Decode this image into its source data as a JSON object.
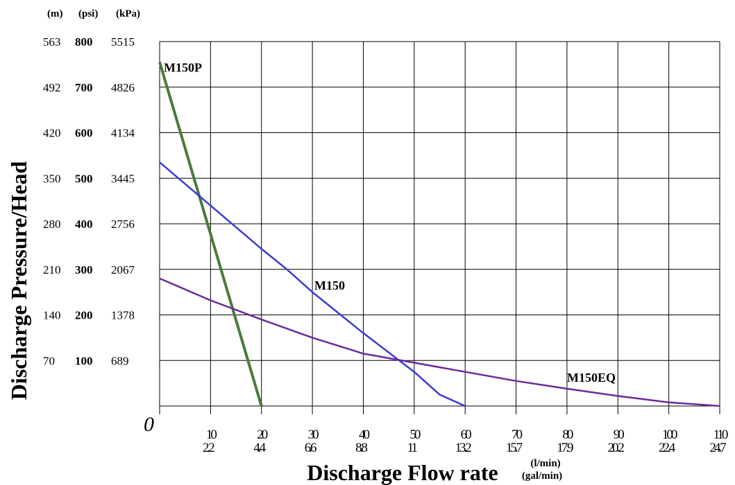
{
  "chart_data": {
    "type": "line",
    "xlabel": "Discharge Flow rate",
    "ylabel": "Discharge Pressure/Head",
    "x_units": [
      "(l/min)",
      "(gal/min)"
    ],
    "y_units": [
      "(m)",
      "(psi)",
      "(kPa)"
    ],
    "origin_label": "0",
    "xlim": [
      0,
      110
    ],
    "ylim": [
      0,
      800
    ],
    "grid": true,
    "x_ticks": [
      {
        "lpm": 10,
        "lpm_label": "10",
        "gpm_label": "2.2"
      },
      {
        "lpm": 20,
        "lpm_label": "20",
        "gpm_label": "4.4"
      },
      {
        "lpm": 30,
        "lpm_label": "30",
        "gpm_label": "6.6"
      },
      {
        "lpm": 40,
        "lpm_label": "40",
        "gpm_label": "8.8"
      },
      {
        "lpm": 50,
        "lpm_label": "50",
        "gpm_label": "11"
      },
      {
        "lpm": 60,
        "lpm_label": "60",
        "gpm_label": "13.2"
      },
      {
        "lpm": 70,
        "lpm_label": "70",
        "gpm_label": "15.7"
      },
      {
        "lpm": 80,
        "lpm_label": "80",
        "gpm_label": "17.9"
      },
      {
        "lpm": 90,
        "lpm_label": "90",
        "gpm_label": "20.2"
      },
      {
        "lpm": 100,
        "lpm_label": "100",
        "gpm_label": "22.4"
      },
      {
        "lpm": 110,
        "lpm_label": "110",
        "gpm_label": "24.7"
      }
    ],
    "y_ticks": [
      {
        "psi": 100,
        "m": "70",
        "psi_label": "100",
        "kpa": "689"
      },
      {
        "psi": 200,
        "m": "140",
        "psi_label": "200",
        "kpa": "1378"
      },
      {
        "psi": 300,
        "m": "210",
        "psi_label": "300",
        "kpa": "2067"
      },
      {
        "psi": 400,
        "m": "280",
        "psi_label": "400",
        "kpa": "2756"
      },
      {
        "psi": 500,
        "m": "350",
        "psi_label": "500",
        "kpa": "3445"
      },
      {
        "psi": 600,
        "m": "420",
        "psi_label": "600",
        "kpa": "4134"
      },
      {
        "psi": 700,
        "m": "492",
        "psi_label": "700",
        "kpa": "4826"
      },
      {
        "psi": 800,
        "m": "563",
        "psi_label": "800",
        "kpa": "5515"
      }
    ],
    "series": [
      {
        "name": "M150P",
        "color": "#4a7a3c",
        "points": [
          [
            0,
            755
          ],
          [
            20,
            0
          ]
        ]
      },
      {
        "name": "M150",
        "color": "#3a3ad6",
        "points": [
          [
            0,
            535
          ],
          [
            10,
            440
          ],
          [
            20,
            345
          ],
          [
            25,
            300
          ],
          [
            30,
            250
          ],
          [
            40,
            160
          ],
          [
            50,
            75
          ],
          [
            55,
            25
          ],
          [
            60,
            0
          ]
        ]
      },
      {
        "name": "M150EQ",
        "color": "#6a2a9a",
        "points": [
          [
            0,
            280
          ],
          [
            10,
            232
          ],
          [
            20,
            190
          ],
          [
            30,
            150
          ],
          [
            40,
            115
          ],
          [
            50,
            95
          ],
          [
            60,
            75
          ],
          [
            70,
            55
          ],
          [
            80,
            38
          ],
          [
            90,
            22
          ],
          [
            100,
            8
          ],
          [
            110,
            0
          ]
        ]
      }
    ]
  }
}
